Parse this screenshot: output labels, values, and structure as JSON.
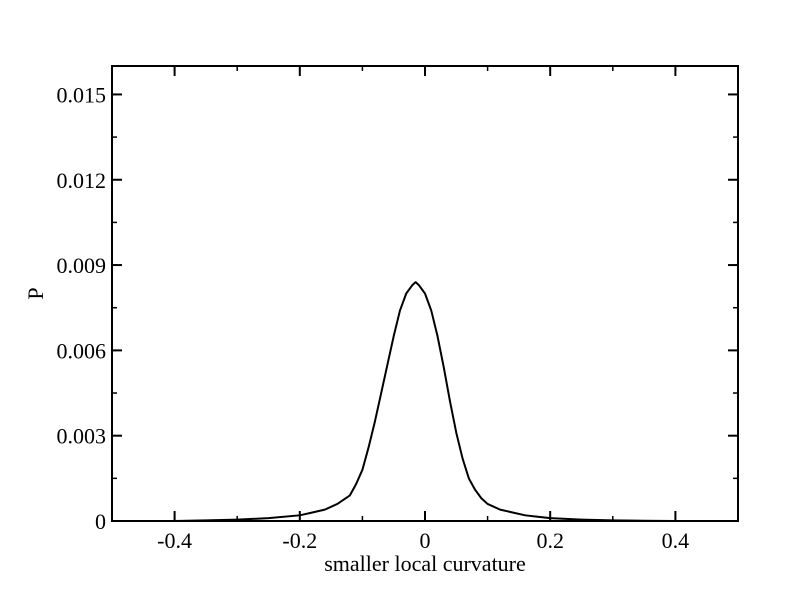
{
  "chart_data": {
    "type": "line",
    "title": "",
    "xlabel": "smaller local curvature",
    "ylabel": "P",
    "xlim": [
      -0.5,
      0.5
    ],
    "ylim": [
      0,
      0.016
    ],
    "x_ticks": [
      -0.4,
      -0.2,
      0,
      0.2,
      0.4
    ],
    "x_tick_labels": [
      "-0.4",
      "-0.2",
      "0",
      "0.2",
      "0.4"
    ],
    "y_ticks": [
      0,
      0.003,
      0.006,
      0.009,
      0.012,
      0.015
    ],
    "y_tick_labels": [
      "0",
      "0.003",
      "0.006",
      "0.009",
      "0.012",
      "0.015"
    ],
    "grid": false,
    "legend": "none",
    "series": [
      {
        "color": "#000000",
        "x": [
          -0.4,
          -0.35,
          -0.3,
          -0.25,
          -0.2,
          -0.18,
          -0.16,
          -0.14,
          -0.12,
          -0.11,
          -0.1,
          -0.09,
          -0.08,
          -0.07,
          -0.06,
          -0.05,
          -0.04,
          -0.03,
          -0.02,
          -0.015,
          -0.01,
          0.0,
          0.01,
          0.02,
          0.03,
          0.04,
          0.05,
          0.06,
          0.07,
          0.08,
          0.09,
          0.1,
          0.12,
          0.14,
          0.16,
          0.18,
          0.2,
          0.25,
          0.3,
          0.35,
          0.4
        ],
        "y": [
          0.0,
          2e-05,
          5e-05,
          0.0001,
          0.0002,
          0.0003,
          0.0004,
          0.0006,
          0.0009,
          0.0013,
          0.0018,
          0.0026,
          0.0035,
          0.0045,
          0.0055,
          0.0065,
          0.0074,
          0.008,
          0.0083,
          0.0084,
          0.0083,
          0.008,
          0.0074,
          0.0065,
          0.0054,
          0.0042,
          0.0031,
          0.0022,
          0.0015,
          0.0011,
          0.0008,
          0.0006,
          0.0004,
          0.0003,
          0.0002,
          0.00015,
          0.0001,
          5e-05,
          2e-05,
          1e-05,
          0.0
        ]
      }
    ]
  }
}
